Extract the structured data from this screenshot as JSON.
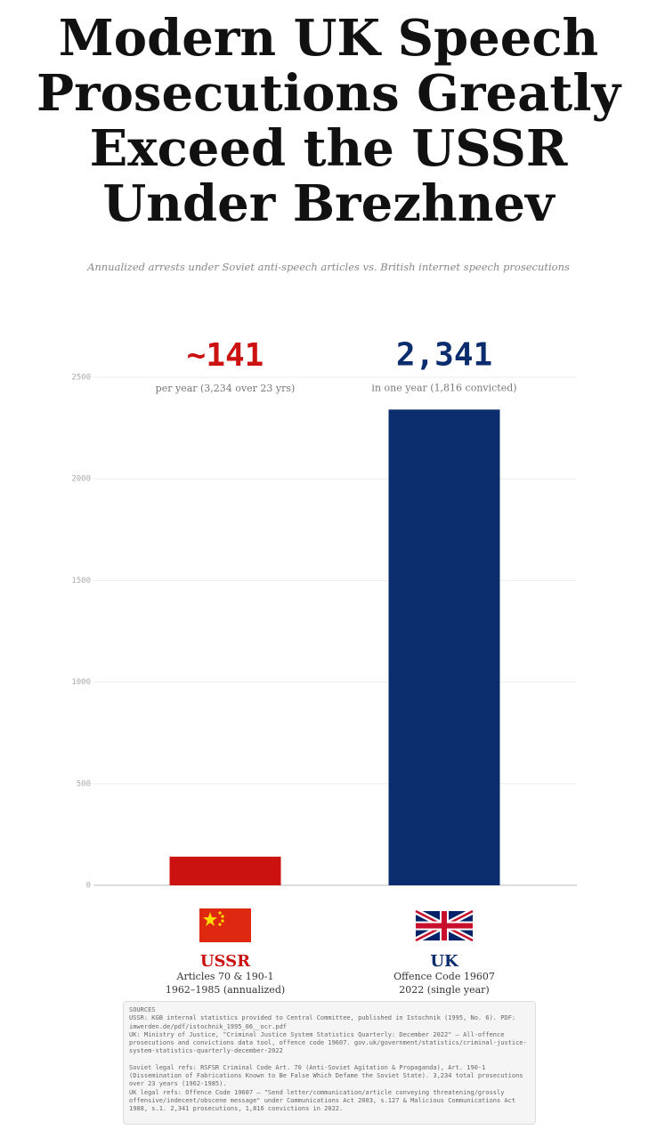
{
  "chart_data": {
    "type": "bar",
    "title": "Modern UK Speech Prosecutions Greatly Exceed the USSR Under Brezhnev",
    "subtitle": "Annualized arrests under Soviet anti-speech articles vs. British internet speech prosecutions",
    "categories": [
      "USSR",
      "UK"
    ],
    "values": [
      141,
      2341
    ],
    "value_labels": [
      "~141",
      "2,341"
    ],
    "annotations": [
      "per year (3,234 over 23 yrs)",
      "in one year (1,816 convicted)"
    ],
    "category_details": [
      [
        "Articles 70 & 190-1",
        "1962–1985 (annualized)"
      ],
      [
        "Offence Code 19607",
        "2022 (single year)"
      ]
    ],
    "colors": [
      "#cc1111",
      "#0b2d6e"
    ],
    "ylim": [
      0,
      2500
    ],
    "yticks": [
      0,
      500,
      1000,
      1500,
      2000,
      2500
    ],
    "grid": true,
    "sources": {
      "heading": "SOURCES",
      "data_sources": [
        "USSR: KGB internal statistics provided to Central Committee, published in Istochnik (1995, No. 6). PDF: imwerden.de/pdf/istochnik_1995_06__ocr.pdf",
        "UK: Ministry of Justice, \"Criminal Justice System Statistics Quarterly: December 2022\" — All-offence prosecutions and convictions data tool, offence code 19607. gov.uk/government/statistics/criminal-justice-system-statistics-quarterly-december-2022"
      ],
      "legal_refs": [
        "Soviet legal refs: RSFSR Criminal Code Art. 70 (Anti-Soviet Agitation & Propaganda), Art. 190-1 (Dissemination of Fabrications Known to Be False Which Defame the Soviet State). 3,234 total prosecutions over 23 years (1962-1985).",
        "UK legal refs: Offence Code 19607 — \"Send letter/communication/article conveying threatening/grossly offensive/indecent/obscene message\" under Communications Act 2003, s.127 & Malicious Communications Act 1988, s.1. 2,341 prosecutions, 1,816 convictions in 2022."
      ]
    }
  }
}
